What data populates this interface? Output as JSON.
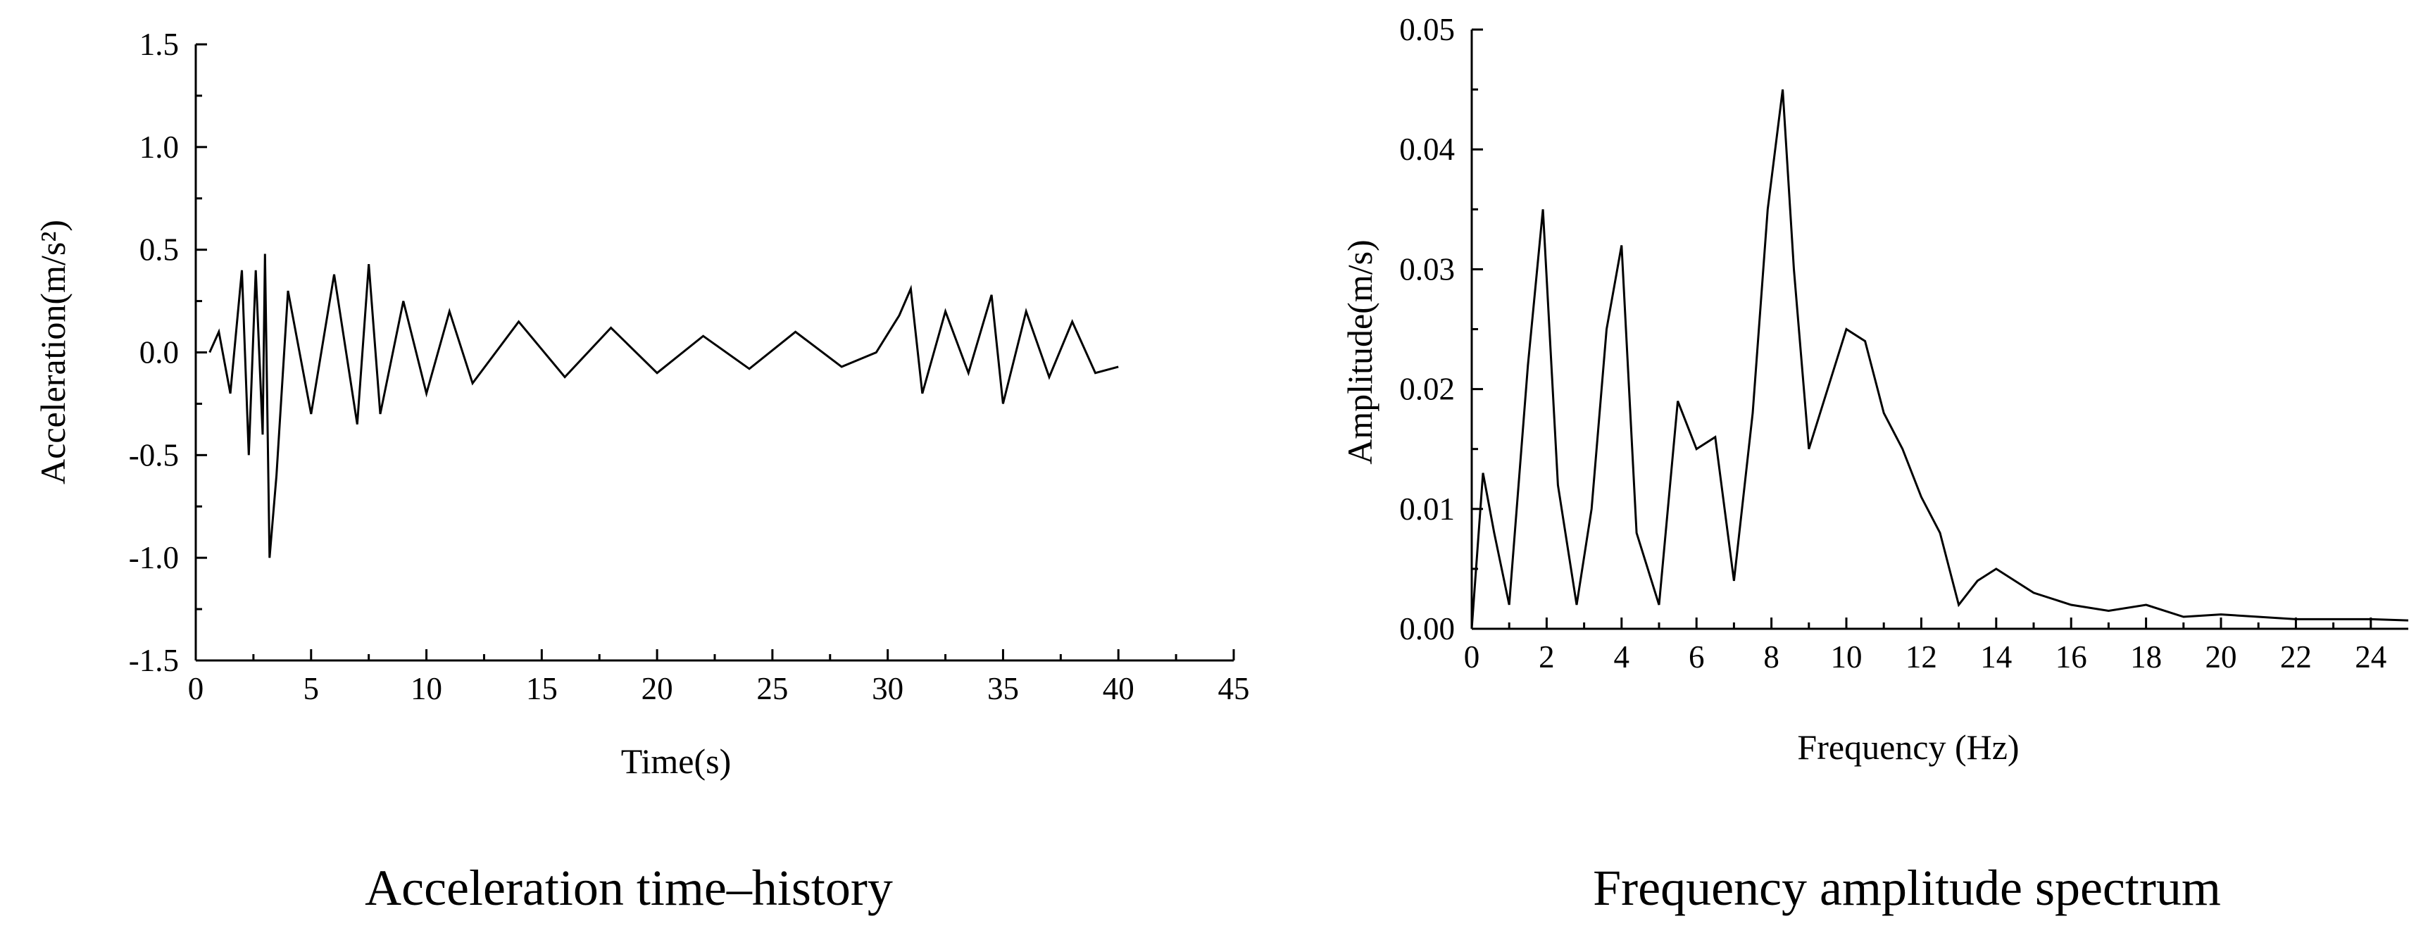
{
  "chart_data": [
    {
      "type": "line",
      "caption": "Acceleration time–history",
      "xlabel": "Time(s)",
      "ylabel": "Acceleration(m/s²)",
      "xlim": [
        0,
        45
      ],
      "ylim": [
        -1.5,
        1.5
      ],
      "x_ticks": [
        "0",
        "5",
        "10",
        "15",
        "20",
        "25",
        "30",
        "35",
        "40",
        "45"
      ],
      "y_ticks": [
        "1.5",
        "1.0",
        "0.5",
        "0.0",
        "-0.5",
        "-1.0",
        "-1.5"
      ],
      "grid": false,
      "series": [
        {
          "x": [
            0.6,
            1.0,
            1.5,
            2.0,
            2.3,
            2.6,
            2.9,
            3.0,
            3.2,
            3.5,
            4.0,
            5.0,
            6.0,
            7.0,
            7.5,
            8.0,
            9.0,
            10.0,
            11.0,
            12.0,
            14.0,
            16.0,
            18.0,
            20.0,
            22.0,
            24.0,
            26.0,
            28.0,
            29.5,
            30.5,
            31.0,
            31.5,
            32.5,
            33.5,
            34.5,
            35.0,
            36.0,
            37.0,
            38.0,
            39.0,
            40.0
          ],
          "y": [
            0.0,
            0.1,
            -0.2,
            0.4,
            -0.5,
            0.4,
            -0.4,
            0.48,
            -1.0,
            -0.6,
            0.3,
            -0.3,
            0.38,
            -0.35,
            0.43,
            -0.3,
            0.25,
            -0.2,
            0.2,
            -0.15,
            0.15,
            -0.12,
            0.12,
            -0.1,
            0.08,
            -0.08,
            0.1,
            -0.07,
            0.0,
            0.18,
            0.31,
            -0.2,
            0.2,
            -0.1,
            0.28,
            -0.25,
            0.2,
            -0.12,
            0.15,
            -0.1,
            -0.07
          ]
        }
      ]
    },
    {
      "type": "line",
      "caption": "Frequency amplitude spectrum",
      "xlabel": "Frequency (Hz)",
      "ylabel": "Amplitude(m/s)",
      "xlim": [
        0,
        25
      ],
      "ylim": [
        0,
        0.05
      ],
      "x_ticks": [
        "0",
        "2",
        "4",
        "6",
        "8",
        "10",
        "12",
        "14",
        "16",
        "18",
        "20",
        "22",
        "24"
      ],
      "y_ticks": [
        "0.05",
        "0.04",
        "0.03",
        "0.02",
        "0.01",
        "0.00"
      ],
      "grid": false,
      "series": [
        {
          "x": [
            0.0,
            0.3,
            0.6,
            1.0,
            1.5,
            1.9,
            2.3,
            2.8,
            3.2,
            3.6,
            4.0,
            4.4,
            5.0,
            5.5,
            6.0,
            6.5,
            7.0,
            7.5,
            7.9,
            8.3,
            8.6,
            9.0,
            9.5,
            10.0,
            10.5,
            11.0,
            11.5,
            12.0,
            12.5,
            13.0,
            13.5,
            14.0,
            15.0,
            16.0,
            17.0,
            18.0,
            19.0,
            20.0,
            22.0,
            24.0,
            25.0
          ],
          "y": [
            0.0,
            0.013,
            0.008,
            0.002,
            0.022,
            0.035,
            0.012,
            0.002,
            0.01,
            0.025,
            0.032,
            0.008,
            0.002,
            0.019,
            0.015,
            0.016,
            0.004,
            0.018,
            0.035,
            0.045,
            0.03,
            0.015,
            0.02,
            0.025,
            0.024,
            0.018,
            0.015,
            0.011,
            0.008,
            0.002,
            0.004,
            0.005,
            0.003,
            0.002,
            0.0015,
            0.002,
            0.001,
            0.0012,
            0.0008,
            0.0008,
            0.0007
          ]
        }
      ]
    }
  ]
}
